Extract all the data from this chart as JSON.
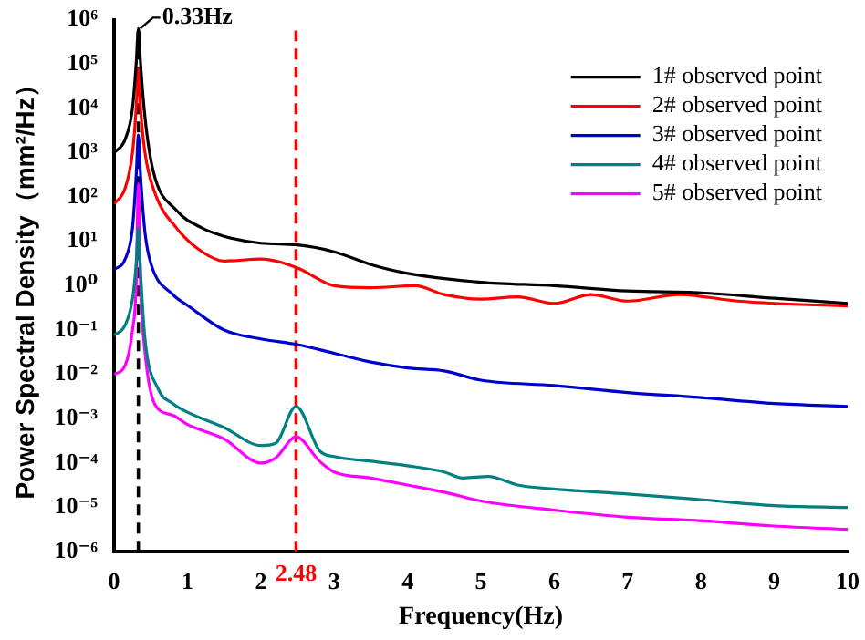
{
  "chart_data": {
    "type": "line",
    "xlabel": "Frequency(Hz)",
    "ylabel": "Power Spectral Density（mm²/Hz）",
    "log": "y",
    "grid": false,
    "legend": "top right",
    "marker": "none",
    "line_style": "solid",
    "xlim": [
      0,
      10
    ],
    "xticks": [
      0,
      1,
      2,
      3,
      4,
      5,
      6,
      7,
      8,
      9,
      10
    ],
    "ylim": [
      1e-06,
      1000000
    ],
    "yticks": [
      {
        "value": 1e-06,
        "label": "10⁻⁶"
      },
      {
        "value": 1e-05,
        "label": "10⁻⁵"
      },
      {
        "value": 0.0001,
        "label": "10⁻⁴"
      },
      {
        "value": 0.001,
        "label": "10⁻³"
      },
      {
        "value": 0.01,
        "label": "10⁻²"
      },
      {
        "value": 0.1,
        "label": "10⁻¹"
      },
      {
        "value": 1,
        "label": "10⁰"
      },
      {
        "value": 10,
        "label": "10¹"
      },
      {
        "value": 100,
        "label": "10²"
      },
      {
        "value": 1000,
        "label": "10³"
      },
      {
        "value": 10000,
        "label": "10⁴"
      },
      {
        "value": 100000,
        "label": "10⁵"
      },
      {
        "value": 1000000,
        "label": "10⁶"
      }
    ],
    "series": [
      {
        "name": "1# observed point",
        "color": "#000000",
        "x": [
          0,
          0.15,
          0.25,
          0.3,
          0.33,
          0.36,
          0.42,
          0.53,
          0.85,
          1.2,
          1.5,
          2,
          2.5,
          3,
          3.5,
          4,
          5,
          6,
          7,
          8,
          9,
          10
        ],
        "values": [
          1000,
          2000,
          10000,
          100000,
          630000,
          100000,
          6300,
          400,
          50,
          20,
          13,
          9.1,
          8.3,
          5.8,
          3.0,
          1.9,
          1.2,
          1,
          0.76,
          0.69,
          0.52,
          0.4
        ]
      },
      {
        "name": "2# observed point",
        "color": "#ff0000",
        "x": [
          0,
          0.15,
          0.25,
          0.3,
          0.33,
          0.36,
          0.42,
          0.55,
          0.85,
          1.2,
          1.5,
          2,
          2.5,
          3,
          3.5,
          4.1,
          4.5,
          5,
          5.5,
          6,
          6.5,
          7,
          7.7,
          8.5,
          9,
          10
        ],
        "values": [
          70,
          160,
          1000,
          10000,
          80000,
          10000,
          1000,
          130,
          20,
          5.8,
          3.6,
          4.0,
          2.5,
          1,
          0.9,
          1,
          0.63,
          0.5,
          0.56,
          0.4,
          0.63,
          0.45,
          0.63,
          0.45,
          0.4,
          0.35
        ]
      },
      {
        "name": "3# observed point",
        "color": "#0000cc",
        "x": [
          0,
          0.15,
          0.25,
          0.3,
          0.33,
          0.36,
          0.42,
          0.5,
          0.8,
          1,
          1.5,
          2,
          2.5,
          3,
          3.5,
          4,
          4.5,
          5,
          6,
          7,
          8,
          9,
          10
        ],
        "values": [
          2.3,
          4,
          20,
          300,
          2500,
          300,
          16,
          3.2,
          0.63,
          0.36,
          0.1,
          0.063,
          0.047,
          0.03,
          0.019,
          0.014,
          0.012,
          0.0074,
          0.0056,
          0.0039,
          0.003,
          0.0022,
          0.0019
        ]
      },
      {
        "name": "4# observed point",
        "color": "#008080",
        "x": [
          0,
          0.15,
          0.25,
          0.3,
          0.33,
          0.36,
          0.42,
          0.6,
          0.8,
          1,
          1.5,
          2,
          2.2,
          2.48,
          2.8,
          3,
          3.5,
          4,
          4.5,
          4.75,
          5.1,
          5.5,
          6,
          7,
          8,
          9,
          10
        ],
        "values": [
          0.076,
          0.13,
          0.5,
          3.2,
          20,
          2,
          0.063,
          0.0047,
          0.0022,
          0.0014,
          0.00063,
          0.00025,
          0.00028,
          0.0019,
          0.00019,
          0.00014,
          0.00011,
          8.7e-05,
          6.3e-05,
          4.6e-05,
          5e-05,
          3.2e-05,
          2.6e-05,
          2e-05,
          1.5e-05,
          1.1e-05,
          1e-05
        ]
      },
      {
        "name": "5# observed point",
        "color": "#ff00ff",
        "x": [
          0,
          0.15,
          0.25,
          0.3,
          0.33,
          0.36,
          0.42,
          0.55,
          0.8,
          1,
          1.5,
          2,
          2.2,
          2.48,
          2.8,
          3,
          3.5,
          4,
          4.5,
          5,
          6,
          7,
          8,
          9,
          10
        ],
        "values": [
          0.01,
          0.016,
          0.1,
          1,
          200,
          1,
          0.032,
          0.0022,
          0.0012,
          0.00074,
          0.00035,
          0.0001,
          0.00013,
          0.00039,
          0.00011,
          6.3e-05,
          4.6e-05,
          3.2e-05,
          2.2e-05,
          1.4e-05,
          8.7e-06,
          6e-06,
          5e-06,
          3.8e-06,
          3.2e-06
        ]
      }
    ],
    "ref_lines": [
      {
        "axis": "x",
        "value": 0.33,
        "color": "#000000",
        "line_style": "dashed"
      },
      {
        "axis": "x",
        "value": 2.48,
        "label": "2.48",
        "color": "#ff0000",
        "line_style": "dashed"
      }
    ],
    "annotations": [
      {
        "text": "0.33Hz",
        "x": 0.33,
        "y": 630000
      }
    ]
  }
}
